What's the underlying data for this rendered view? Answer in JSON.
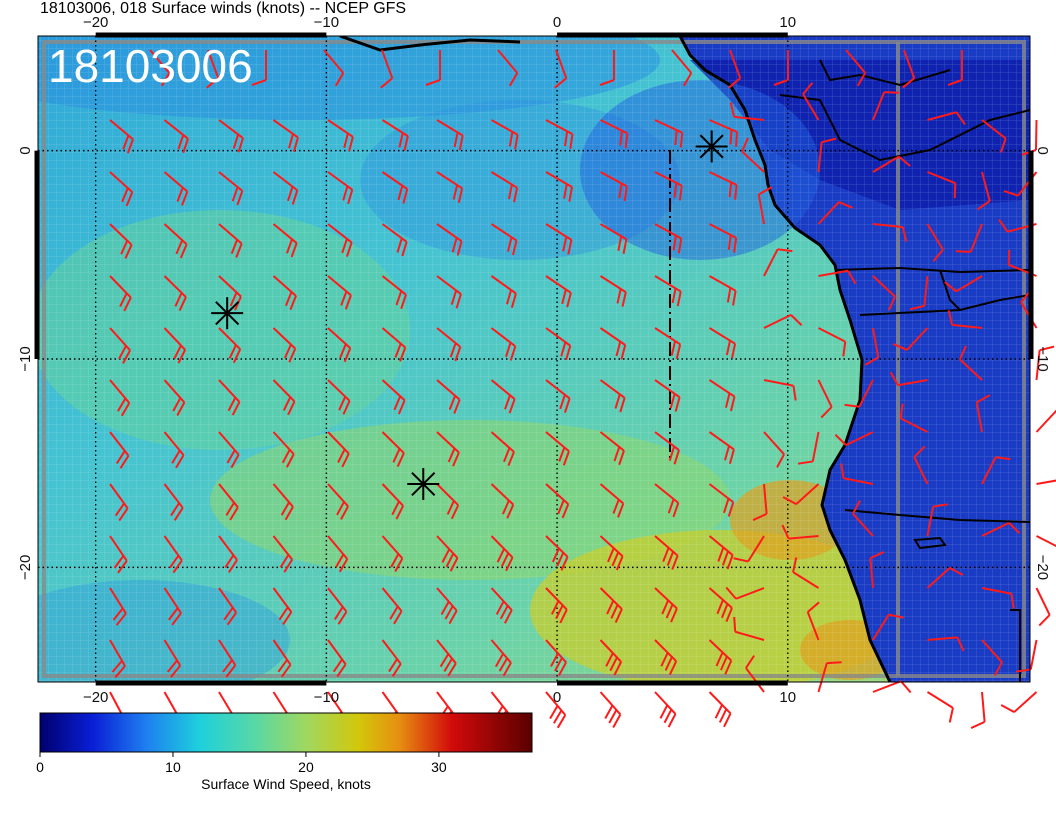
{
  "header": {
    "title": "18103006, 018 Surface winds (knots) -- NCEP GFS",
    "stamp": "18103006"
  },
  "map": {
    "lon_range": [
      -22.5,
      20.5
    ],
    "lat_range": [
      -25.5,
      5.5
    ],
    "bottom_ticks": [
      "−20",
      "−10",
      "0",
      "10"
    ],
    "top_ticks": [
      "−20",
      "−10",
      "0",
      "10"
    ],
    "left_ticks": [
      "0",
      "−10",
      "−20"
    ],
    "right_ticks": [
      "0",
      "−10",
      "−20"
    ],
    "field_colors": {
      "ocean_base": "#3fb7cf",
      "land_base": "#1e3fc0",
      "jet": "#d8c83a",
      "coast": "#000000",
      "barb": "#ff1a1a"
    },
    "markers": [
      {
        "name": "marker-1",
        "lon": 6.7,
        "lat": 0.2
      },
      {
        "name": "marker-2",
        "lon": -14.3,
        "lat": -7.8
      },
      {
        "name": "marker-3",
        "lon": -5.8,
        "lat": -16.0
      }
    ]
  },
  "colorbar": {
    "label": "Surface Wind Speed, knots",
    "range": [
      0,
      37
    ],
    "ticks": [
      {
        "value": 0,
        "label": "0"
      },
      {
        "value": 10,
        "label": "10"
      },
      {
        "value": 20,
        "label": "20"
      },
      {
        "value": 30,
        "label": "30"
      }
    ],
    "stops": [
      {
        "value": 0,
        "color": "#00006e"
      },
      {
        "value": 4,
        "color": "#0a1fd6"
      },
      {
        "value": 8,
        "color": "#1e7ff0"
      },
      {
        "value": 12,
        "color": "#1ed0dc"
      },
      {
        "value": 16,
        "color": "#55d8a8"
      },
      {
        "value": 20,
        "color": "#9fd860"
      },
      {
        "value": 24,
        "color": "#d2c70a"
      },
      {
        "value": 27,
        "color": "#e68f10"
      },
      {
        "value": 31,
        "color": "#d20a0a"
      },
      {
        "value": 37,
        "color": "#5a0000"
      }
    ]
  }
}
